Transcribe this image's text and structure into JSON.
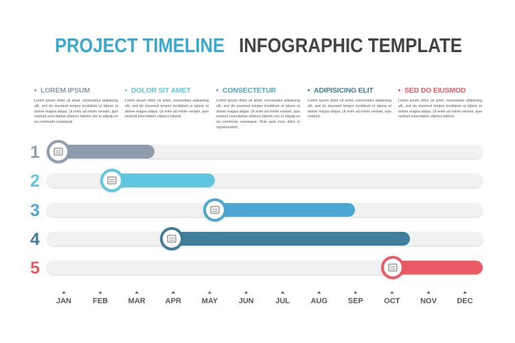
{
  "header": {
    "title_left": "PROJECT TIMELINE",
    "title_right": "INFOGRAPHIC TEMPLATE"
  },
  "columns": [
    {
      "heading": "LOREM IPSUM",
      "text": "Lorem ipsum dolor sit amet, consectetur adipiscing elit, sed do eiusmod tempor incididunt ut labore et dolore magna aliqua. Ut enim ad minim veniam, quis nostrud exercitation ullamco laboris nisi ut aliquip ex ea commodo consequat."
    },
    {
      "heading": "DOLOR SIT AMET",
      "text": "Lorem ipsum dolor sit amet, consectetur adipiscing elit, sed do eiusmod tempor incididunt ut labore et dolore magna aliqua. Ut enim ad minim veniam, quis nostrud exercitation ullamco laboris."
    },
    {
      "heading": "CONSECTETUR",
      "text": "Lorem ipsum dolor sit amet, consectetur adipiscing elit, sed do eiusmod tempor incididunt ut labore et dolore magna aliqua. Ut enim ad minim veniam, quis nostrud exercitation ullamco laboris nisi ut aliquip ex ea commodo consequat. Duis aute irure dolor in reprehenderit."
    },
    {
      "heading": "ADIPISICING ELIT",
      "text": "Lorem ipsum dolor sit amet, consectetur adipiscing elit, sed do eiusmod tempor incididunt ut labore et dolore magna aliqua. Ut enim ad minim veniam, quis nostrud."
    },
    {
      "heading": "SED DO EIUSMOD",
      "text": "Lorem ipsum dolor sit amet, consectetur adipiscing elit, sed do eiusmod tempor incididunt ut labore et dolore magna aliqua. Ut enim ad minim veniam, quis nostrud exercitation ullamco laboris."
    }
  ],
  "rows": [
    "1",
    "2",
    "3",
    "4",
    "5"
  ],
  "months": [
    "JAN",
    "FEB",
    "MAR",
    "APR",
    "MAY",
    "JUN",
    "JUL",
    "AUG",
    "SEP",
    "OCT",
    "NOV",
    "DEC"
  ]
}
